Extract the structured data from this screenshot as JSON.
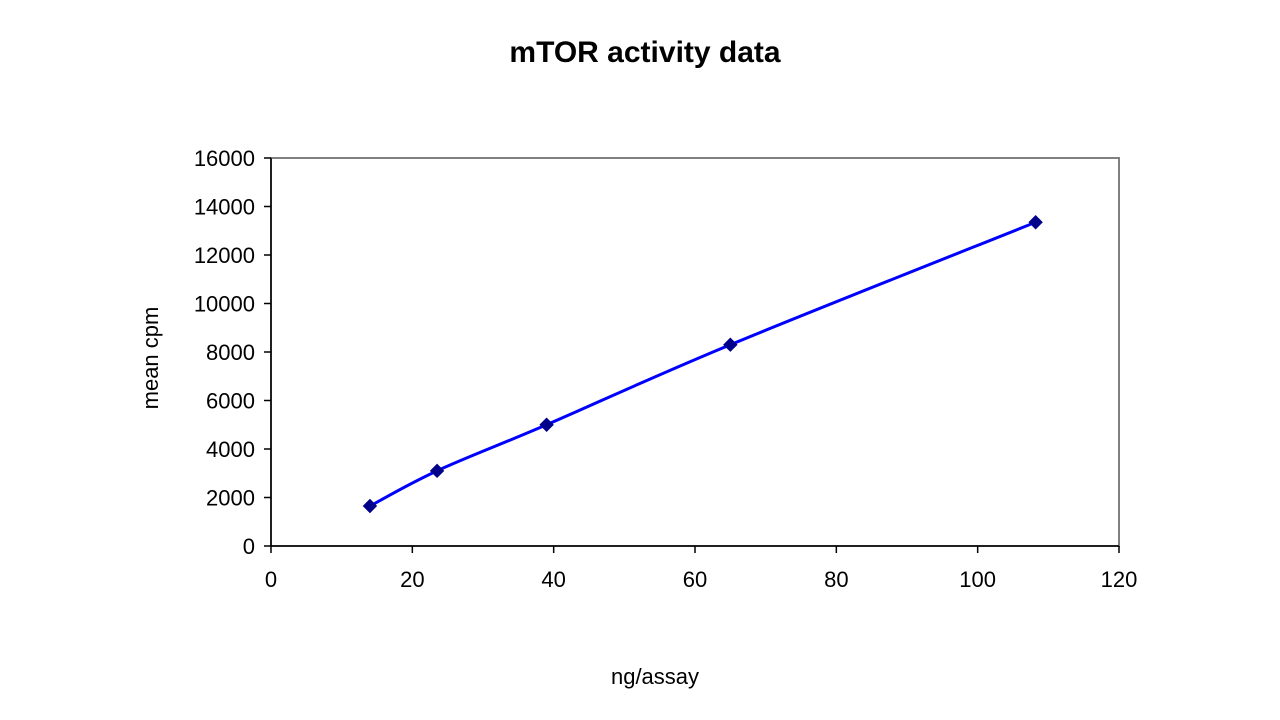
{
  "chart_data": {
    "type": "scatter",
    "title": "mTOR activity data",
    "xlabel": "ng/assay",
    "ylabel": "mean cpm",
    "xlim": [
      0,
      120
    ],
    "ylim": [
      0,
      16000
    ],
    "xticks": [
      "0",
      "20",
      "40",
      "60",
      "80",
      "100",
      "120"
    ],
    "yticks": [
      "0",
      "2000",
      "4000",
      "6000",
      "8000",
      "10000",
      "12000",
      "14000",
      "16000"
    ],
    "grid": false,
    "legend": "none",
    "series": [
      {
        "x": [
          14,
          23.5,
          39,
          65,
          108.2
        ],
        "y": [
          1650,
          3100,
          5000,
          8300,
          13350
        ],
        "color": "#0000ff",
        "marker_color": "#00008b",
        "marker": "diamond",
        "line": "smooth"
      }
    ]
  }
}
